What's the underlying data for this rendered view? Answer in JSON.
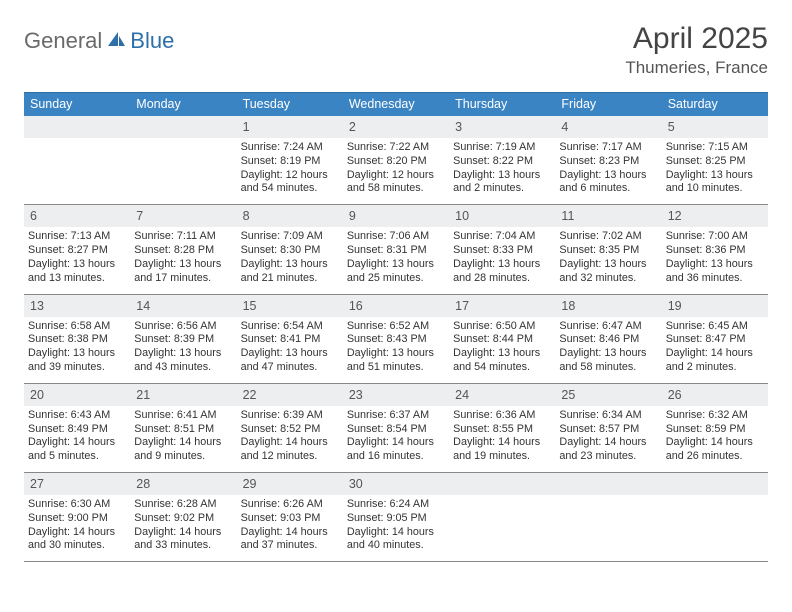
{
  "logo": {
    "part1": "General",
    "part2": "Blue"
  },
  "title": "April 2025",
  "location": "Thumeries, France",
  "day_header_bg": "#3b84c4",
  "day_header_fg": "#ffffff",
  "border_color": "#2f6fa8",
  "day_num_bg": "#eceef0",
  "days": [
    "Sunday",
    "Monday",
    "Tuesday",
    "Wednesday",
    "Thursday",
    "Friday",
    "Saturday"
  ],
  "weeks": [
    [
      null,
      null,
      {
        "n": "1",
        "sr": "7:24 AM",
        "ss": "8:19 PM",
        "dl": "12 hours and 54 minutes."
      },
      {
        "n": "2",
        "sr": "7:22 AM",
        "ss": "8:20 PM",
        "dl": "12 hours and 58 minutes."
      },
      {
        "n": "3",
        "sr": "7:19 AM",
        "ss": "8:22 PM",
        "dl": "13 hours and 2 minutes."
      },
      {
        "n": "4",
        "sr": "7:17 AM",
        "ss": "8:23 PM",
        "dl": "13 hours and 6 minutes."
      },
      {
        "n": "5",
        "sr": "7:15 AM",
        "ss": "8:25 PM",
        "dl": "13 hours and 10 minutes."
      }
    ],
    [
      {
        "n": "6",
        "sr": "7:13 AM",
        "ss": "8:27 PM",
        "dl": "13 hours and 13 minutes."
      },
      {
        "n": "7",
        "sr": "7:11 AM",
        "ss": "8:28 PM",
        "dl": "13 hours and 17 minutes."
      },
      {
        "n": "8",
        "sr": "7:09 AM",
        "ss": "8:30 PM",
        "dl": "13 hours and 21 minutes."
      },
      {
        "n": "9",
        "sr": "7:06 AM",
        "ss": "8:31 PM",
        "dl": "13 hours and 25 minutes."
      },
      {
        "n": "10",
        "sr": "7:04 AM",
        "ss": "8:33 PM",
        "dl": "13 hours and 28 minutes."
      },
      {
        "n": "11",
        "sr": "7:02 AM",
        "ss": "8:35 PM",
        "dl": "13 hours and 32 minutes."
      },
      {
        "n": "12",
        "sr": "7:00 AM",
        "ss": "8:36 PM",
        "dl": "13 hours and 36 minutes."
      }
    ],
    [
      {
        "n": "13",
        "sr": "6:58 AM",
        "ss": "8:38 PM",
        "dl": "13 hours and 39 minutes."
      },
      {
        "n": "14",
        "sr": "6:56 AM",
        "ss": "8:39 PM",
        "dl": "13 hours and 43 minutes."
      },
      {
        "n": "15",
        "sr": "6:54 AM",
        "ss": "8:41 PM",
        "dl": "13 hours and 47 minutes."
      },
      {
        "n": "16",
        "sr": "6:52 AM",
        "ss": "8:43 PM",
        "dl": "13 hours and 51 minutes."
      },
      {
        "n": "17",
        "sr": "6:50 AM",
        "ss": "8:44 PM",
        "dl": "13 hours and 54 minutes."
      },
      {
        "n": "18",
        "sr": "6:47 AM",
        "ss": "8:46 PM",
        "dl": "13 hours and 58 minutes."
      },
      {
        "n": "19",
        "sr": "6:45 AM",
        "ss": "8:47 PM",
        "dl": "14 hours and 2 minutes."
      }
    ],
    [
      {
        "n": "20",
        "sr": "6:43 AM",
        "ss": "8:49 PM",
        "dl": "14 hours and 5 minutes."
      },
      {
        "n": "21",
        "sr": "6:41 AM",
        "ss": "8:51 PM",
        "dl": "14 hours and 9 minutes."
      },
      {
        "n": "22",
        "sr": "6:39 AM",
        "ss": "8:52 PM",
        "dl": "14 hours and 12 minutes."
      },
      {
        "n": "23",
        "sr": "6:37 AM",
        "ss": "8:54 PM",
        "dl": "14 hours and 16 minutes."
      },
      {
        "n": "24",
        "sr": "6:36 AM",
        "ss": "8:55 PM",
        "dl": "14 hours and 19 minutes."
      },
      {
        "n": "25",
        "sr": "6:34 AM",
        "ss": "8:57 PM",
        "dl": "14 hours and 23 minutes."
      },
      {
        "n": "26",
        "sr": "6:32 AM",
        "ss": "8:59 PM",
        "dl": "14 hours and 26 minutes."
      }
    ],
    [
      {
        "n": "27",
        "sr": "6:30 AM",
        "ss": "9:00 PM",
        "dl": "14 hours and 30 minutes."
      },
      {
        "n": "28",
        "sr": "6:28 AM",
        "ss": "9:02 PM",
        "dl": "14 hours and 33 minutes."
      },
      {
        "n": "29",
        "sr": "6:26 AM",
        "ss": "9:03 PM",
        "dl": "14 hours and 37 minutes."
      },
      {
        "n": "30",
        "sr": "6:24 AM",
        "ss": "9:05 PM",
        "dl": "14 hours and 40 minutes."
      },
      null,
      null,
      null
    ]
  ],
  "labels": {
    "sunrise": "Sunrise:",
    "sunset": "Sunset:",
    "daylight": "Daylight:"
  }
}
